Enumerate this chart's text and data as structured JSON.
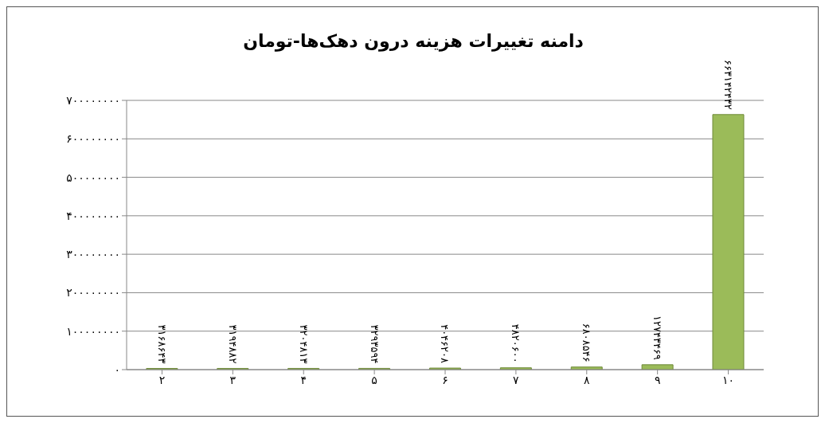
{
  "chart_data": {
    "type": "bar",
    "title": "دامنه تغییرات هزینه درون دهک‌ها-تومان",
    "categories": [
      "۲",
      "۳",
      "۴",
      "۵",
      "۶",
      "۷",
      "۸",
      "۹",
      "۱۰"
    ],
    "values": [
      3168643,
      3194882,
      3204813,
      3293594,
      4046208,
      4820600,
      6808546,
      12743469,
      663142432
    ],
    "value_labels": [
      "۳۱۶۸۶۴۳",
      "۳۱۹۴۸۸۲",
      "۳۲۰۴۸۱۳",
      "۳۲۹۳۵۹۴",
      "۴۰۴۶۲۰۸",
      "۴۸۲۰۶۰۰",
      "۶۸۰۸۵۴۶",
      "۱۲۷۴۳۴۶۹",
      "۶۶۳۱۴۲۴۳۲"
    ],
    "color": "#9bbb59",
    "ylim": [
      0,
      700000000
    ],
    "yticks": [
      {
        "value": 0,
        "label": "۰"
      },
      {
        "value": 100000000,
        "label": "۱۰۰۰۰۰۰۰۰"
      },
      {
        "value": 200000000,
        "label": "۲۰۰۰۰۰۰۰۰"
      },
      {
        "value": 300000000,
        "label": "۳۰۰۰۰۰۰۰۰"
      },
      {
        "value": 400000000,
        "label": "۴۰۰۰۰۰۰۰۰"
      },
      {
        "value": 500000000,
        "label": "۵۰۰۰۰۰۰۰۰"
      },
      {
        "value": 600000000,
        "label": "۶۰۰۰۰۰۰۰۰"
      },
      {
        "value": 700000000,
        "label": "۷۰۰۰۰۰۰۰۰"
      }
    ],
    "grid": "y",
    "legend": false
  }
}
